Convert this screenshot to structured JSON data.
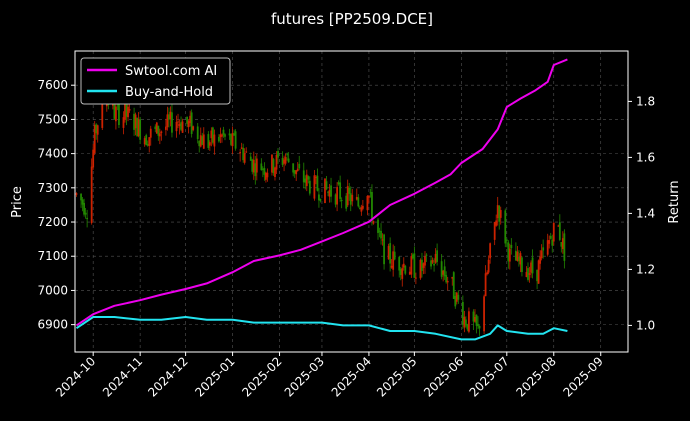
{
  "chart_data": {
    "type": "line",
    "title": "futures [PP2509.DCE]",
    "ylabel": "Price",
    "y2label": "Return",
    "xlim": [
      "2024-09-19",
      "2025-09-19"
    ],
    "ylim": [
      6820,
      7700
    ],
    "y2lim": [
      0.905,
      1.98
    ],
    "grid": true,
    "legend_placement": "top-left",
    "x_ticks": [
      "2024-10",
      "2024-11",
      "2024-12",
      "2025-01",
      "2025-02",
      "2025-03",
      "2025-04",
      "2025-05",
      "2025-06",
      "2025-07",
      "2025-08",
      "2025-09"
    ],
    "y_ticks": [
      6900,
      7000,
      7100,
      7200,
      7300,
      7400,
      7500,
      7600
    ],
    "y2_ticks": [
      "1.0",
      "1.2",
      "1.4",
      "1.6",
      "1.8"
    ],
    "colors": {
      "up": "#cc2200",
      "down": "#228800",
      "ai": "#ee00ee",
      "bh": "#22e4f0",
      "frame": "#ffffff",
      "grid": "#555555"
    },
    "candlestick_close_anchors": [
      [
        "2024-09-20",
        7280
      ],
      [
        "2024-09-27",
        7240
      ],
      [
        "2024-10-02",
        7450
      ],
      [
        "2024-10-08",
        7580
      ],
      [
        "2024-10-15",
        7520
      ],
      [
        "2024-10-25",
        7510
      ],
      [
        "2024-11-05",
        7450
      ],
      [
        "2024-11-15",
        7470
      ],
      [
        "2024-11-25",
        7500
      ],
      [
        "2024-12-05",
        7480
      ],
      [
        "2024-12-15",
        7430
      ],
      [
        "2024-12-25",
        7450
      ],
      [
        "2025-01-05",
        7420
      ],
      [
        "2025-01-15",
        7370
      ],
      [
        "2025-01-25",
        7360
      ],
      [
        "2025-02-05",
        7390
      ],
      [
        "2025-02-15",
        7330
      ],
      [
        "2025-02-25",
        7300
      ],
      [
        "2025-03-05",
        7290
      ],
      [
        "2025-03-15",
        7280
      ],
      [
        "2025-03-25",
        7250
      ],
      [
        "2025-03-31",
        7300
      ],
      [
        "2025-04-05",
        7180
      ],
      [
        "2025-04-12",
        7100
      ],
      [
        "2025-04-22",
        7080
      ],
      [
        "2025-05-05",
        7060
      ],
      [
        "2025-05-15",
        7090
      ],
      [
        "2025-05-25",
        7020
      ],
      [
        "2025-06-03",
        6920
      ],
      [
        "2025-06-12",
        6880
      ],
      [
        "2025-06-18",
        7050
      ],
      [
        "2025-06-25",
        7250
      ],
      [
        "2025-07-03",
        7100
      ],
      [
        "2025-07-12",
        7070
      ],
      [
        "2025-07-20",
        7050
      ],
      [
        "2025-07-28",
        7130
      ],
      [
        "2025-08-03",
        7200
      ],
      [
        "2025-08-10",
        7080
      ]
    ],
    "series": [
      {
        "name": "Swtool.com AI",
        "axis": "right",
        "points": [
          [
            "2024-09-20",
            1.0
          ],
          [
            "2024-10-01",
            1.04
          ],
          [
            "2024-10-15",
            1.07
          ],
          [
            "2024-11-01",
            1.09
          ],
          [
            "2024-11-15",
            1.11
          ],
          [
            "2024-12-01",
            1.13
          ],
          [
            "2024-12-15",
            1.15
          ],
          [
            "2025-01-01",
            1.19
          ],
          [
            "2025-01-15",
            1.23
          ],
          [
            "2025-02-01",
            1.25
          ],
          [
            "2025-02-15",
            1.27
          ],
          [
            "2025-03-01",
            1.3
          ],
          [
            "2025-03-15",
            1.33
          ],
          [
            "2025-04-01",
            1.37
          ],
          [
            "2025-04-15",
            1.43
          ],
          [
            "2025-05-01",
            1.47
          ],
          [
            "2025-05-15",
            1.51
          ],
          [
            "2025-05-25",
            1.54
          ],
          [
            "2025-06-01",
            1.58
          ],
          [
            "2025-06-15",
            1.63
          ],
          [
            "2025-06-25",
            1.7
          ],
          [
            "2025-07-01",
            1.78
          ],
          [
            "2025-07-10",
            1.81
          ],
          [
            "2025-07-20",
            1.84
          ],
          [
            "2025-07-28",
            1.87
          ],
          [
            "2025-08-01",
            1.93
          ],
          [
            "2025-08-10",
            1.95
          ]
        ]
      },
      {
        "name": "Buy-and-Hold",
        "axis": "right",
        "points": [
          [
            "2024-09-20",
            0.99
          ],
          [
            "2024-10-01",
            1.03
          ],
          [
            "2024-10-15",
            1.03
          ],
          [
            "2024-11-01",
            1.02
          ],
          [
            "2024-11-15",
            1.02
          ],
          [
            "2024-12-01",
            1.03
          ],
          [
            "2024-12-15",
            1.02
          ],
          [
            "2025-01-01",
            1.02
          ],
          [
            "2025-01-15",
            1.01
          ],
          [
            "2025-02-01",
            1.01
          ],
          [
            "2025-02-15",
            1.01
          ],
          [
            "2025-03-01",
            1.01
          ],
          [
            "2025-03-15",
            1.0
          ],
          [
            "2025-04-01",
            1.0
          ],
          [
            "2025-04-15",
            0.98
          ],
          [
            "2025-05-01",
            0.98
          ],
          [
            "2025-05-15",
            0.97
          ],
          [
            "2025-06-01",
            0.95
          ],
          [
            "2025-06-10",
            0.95
          ],
          [
            "2025-06-20",
            0.97
          ],
          [
            "2025-06-25",
            1.0
          ],
          [
            "2025-07-01",
            0.98
          ],
          [
            "2025-07-15",
            0.97
          ],
          [
            "2025-07-25",
            0.97
          ],
          [
            "2025-08-01",
            0.99
          ],
          [
            "2025-08-10",
            0.98
          ]
        ]
      }
    ]
  }
}
